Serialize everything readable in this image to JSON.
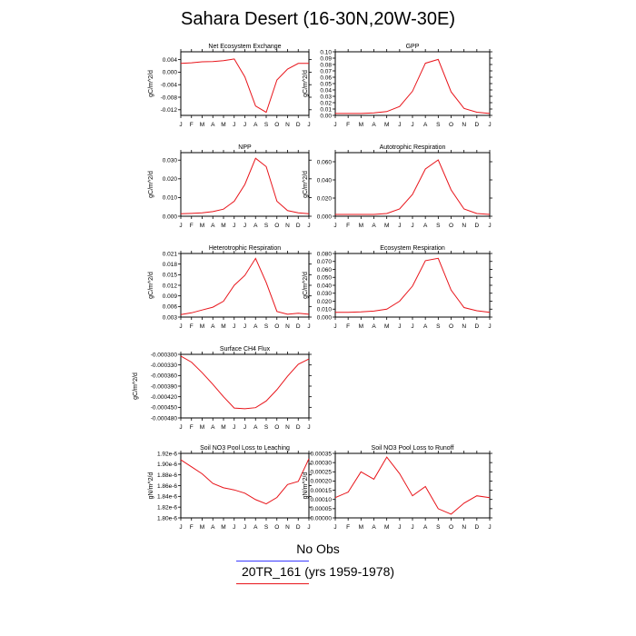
{
  "title": "Sahara Desert (16-30N,20W-30E)",
  "legend": {
    "obs_label": "No Obs",
    "model_label": "20TR_161 (yrs 1959-1978)",
    "obs_color": "#3a3aff",
    "model_color": "#e8141a"
  },
  "colors": {
    "line": "#e8141a",
    "axis": "#000000"
  },
  "chart_data": [
    {
      "type": "line",
      "title": "Net Ecosystem Exchange",
      "ylabel": "gC/m^2/d",
      "categories": [
        "J",
        "F",
        "M",
        "A",
        "M",
        "J",
        "J",
        "A",
        "S",
        "O",
        "N",
        "D",
        "J"
      ],
      "yticks": [
        "0.004",
        "0.000",
        "-0.004",
        "-0.008",
        "-0.012"
      ],
      "ytick_values": [
        0.004,
        0.0,
        -0.004,
        -0.008,
        -0.012
      ],
      "ylim": [
        -0.0138,
        0.0065
      ],
      "values": [
        0.0028,
        0.003,
        0.0033,
        0.0034,
        0.0037,
        0.0042,
        -0.0015,
        -0.0108,
        -0.0128,
        -0.0025,
        0.001,
        0.0028,
        0.0028
      ]
    },
    {
      "type": "line",
      "title": "GPP",
      "ylabel": "gC/m^2/d",
      "categories": [
        "J",
        "F",
        "M",
        "A",
        "M",
        "J",
        "J",
        "A",
        "S",
        "O",
        "N",
        "D",
        "J"
      ],
      "yticks": [
        "0.00",
        "0.01",
        "0.02",
        "0.03",
        "0.04",
        "0.05",
        "0.06",
        "0.07",
        "0.08",
        "0.09",
        "0.10"
      ],
      "ytick_values": [
        0.0,
        0.01,
        0.02,
        0.03,
        0.04,
        0.05,
        0.06,
        0.07,
        0.08,
        0.09,
        0.1
      ],
      "ylim": [
        0.0,
        0.1
      ],
      "values": [
        0.003,
        0.003,
        0.003,
        0.004,
        0.006,
        0.014,
        0.038,
        0.082,
        0.088,
        0.037,
        0.011,
        0.005,
        0.003
      ]
    },
    {
      "type": "line",
      "title": "NPP",
      "ylabel": "gC/m^2/d",
      "categories": [
        "J",
        "F",
        "M",
        "A",
        "M",
        "J",
        "J",
        "A",
        "S",
        "O",
        "N",
        "D",
        "J"
      ],
      "yticks": [
        "0.000",
        "0.010",
        "0.020",
        "0.030"
      ],
      "ytick_values": [
        0.0,
        0.01,
        0.02,
        0.03
      ],
      "ylim": [
        0.0,
        0.034
      ],
      "values": [
        0.0013,
        0.0015,
        0.0018,
        0.0025,
        0.0038,
        0.008,
        0.017,
        0.031,
        0.0265,
        0.008,
        0.003,
        0.0018,
        0.0013
      ]
    },
    {
      "type": "line",
      "title": "Autotrophic Respiration",
      "ylabel": "gC/m^2/d",
      "categories": [
        "J",
        "F",
        "M",
        "A",
        "M",
        "J",
        "J",
        "A",
        "S",
        "O",
        "N",
        "D",
        "J"
      ],
      "yticks": [
        "0.000",
        "0.020",
        "0.040",
        "0.060"
      ],
      "ytick_values": [
        0.0,
        0.02,
        0.04,
        0.06
      ],
      "ylim": [
        0.0,
        0.07
      ],
      "values": [
        0.002,
        0.002,
        0.002,
        0.002,
        0.003,
        0.008,
        0.024,
        0.052,
        0.062,
        0.029,
        0.008,
        0.003,
        0.002
      ]
    },
    {
      "type": "line",
      "title": "Heterotrophic Respiration",
      "ylabel": "gC/m^2/d",
      "categories": [
        "J",
        "F",
        "M",
        "A",
        "M",
        "J",
        "J",
        "A",
        "S",
        "O",
        "N",
        "D",
        "J"
      ],
      "yticks": [
        "0.003",
        "0.006",
        "0.009",
        "0.012",
        "0.015",
        "0.018",
        "0.021"
      ],
      "ytick_values": [
        0.003,
        0.006,
        0.009,
        0.012,
        0.015,
        0.018,
        0.021
      ],
      "ylim": [
        0.003,
        0.021
      ],
      "values": [
        0.0037,
        0.0042,
        0.005,
        0.0058,
        0.0075,
        0.012,
        0.0148,
        0.0196,
        0.0128,
        0.0046,
        0.0038,
        0.0041,
        0.0038
      ]
    },
    {
      "type": "line",
      "title": "Ecosystem Respiration",
      "ylabel": "gC/m^2/d",
      "categories": [
        "J",
        "F",
        "M",
        "A",
        "M",
        "J",
        "J",
        "A",
        "S",
        "O",
        "N",
        "D",
        "J"
      ],
      "yticks": [
        "0.000",
        "0.010",
        "0.020",
        "0.030",
        "0.040",
        "0.050",
        "0.060",
        "0.070",
        "0.080"
      ],
      "ytick_values": [
        0.0,
        0.01,
        0.02,
        0.03,
        0.04,
        0.05,
        0.06,
        0.07,
        0.08
      ],
      "ylim": [
        0.0,
        0.08
      ],
      "values": [
        0.006,
        0.006,
        0.0065,
        0.0075,
        0.01,
        0.02,
        0.039,
        0.071,
        0.074,
        0.034,
        0.012,
        0.008,
        0.006
      ]
    },
    {
      "type": "line",
      "title": "Surface CH4 Flux",
      "ylabel": "gC/m^2/d",
      "categories": [
        "J",
        "F",
        "M",
        "A",
        "M",
        "J",
        "J",
        "A",
        "S",
        "O",
        "N",
        "D",
        "J"
      ],
      "yticks": [
        "-0.000300",
        "-0.000330",
        "-0.000360",
        "-0.000390",
        "-0.000420",
        "-0.000450",
        "-0.000480"
      ],
      "ytick_values": [
        -0.0003,
        -0.00033,
        -0.00036,
        -0.00039,
        -0.00042,
        -0.00045,
        -0.00048
      ],
      "ylim": [
        -0.00048,
        -0.0003
      ],
      "values": [
        -0.000305,
        -0.000322,
        -0.000352,
        -0.000385,
        -0.00042,
        -0.000452,
        -0.000454,
        -0.000451,
        -0.000432,
        -0.0004,
        -0.000362,
        -0.000328,
        -0.000313
      ]
    },
    {
      "type": "line",
      "title": "Soil NO3 Pool Loss to Leaching",
      "ylabel": "gN/m^2/d",
      "categories": [
        "J",
        "F",
        "M",
        "A",
        "M",
        "J",
        "J",
        "A",
        "S",
        "O",
        "N",
        "D",
        "J"
      ],
      "yticks": [
        "1.80e-6",
        "1.82e-6",
        "1.84e-6",
        "1.86e-6",
        "1.88e-6",
        "1.90e-6",
        "1.92e-6"
      ],
      "ytick_values": [
        1.8e-06,
        1.82e-06,
        1.84e-06,
        1.86e-06,
        1.88e-06,
        1.9e-06,
        1.92e-06
      ],
      "ylim": [
        1.8e-06,
        1.92e-06
      ],
      "values": [
        1.908e-06,
        1.895e-06,
        1.882e-06,
        1.864e-06,
        1.856e-06,
        1.852e-06,
        1.846e-06,
        1.834e-06,
        1.826e-06,
        1.838e-06,
        1.862e-06,
        1.868e-06,
        1.91e-06
      ]
    },
    {
      "type": "line",
      "title": "Soil NO3 Pool Loss to Runoff",
      "ylabel": "gN/m^2/d",
      "categories": [
        "J",
        "F",
        "M",
        "A",
        "M",
        "J",
        "J",
        "A",
        "S",
        "O",
        "N",
        "D",
        "J"
      ],
      "yticks": [
        "0.00000",
        "0.00005",
        "0.00010",
        "0.00015",
        "0.00020",
        "0.00025",
        "0.00030",
        "0.00035"
      ],
      "ytick_values": [
        0.0,
        5e-05,
        0.0001,
        0.00015,
        0.0002,
        0.00025,
        0.0003,
        0.00035
      ],
      "ylim": [
        0.0,
        0.00035
      ],
      "values": [
        0.00011,
        0.00014,
        0.00025,
        0.00021,
        0.00033,
        0.00024,
        0.00012,
        0.00017,
        5e-05,
        2e-05,
        8e-05,
        0.00012,
        0.00011
      ]
    }
  ]
}
